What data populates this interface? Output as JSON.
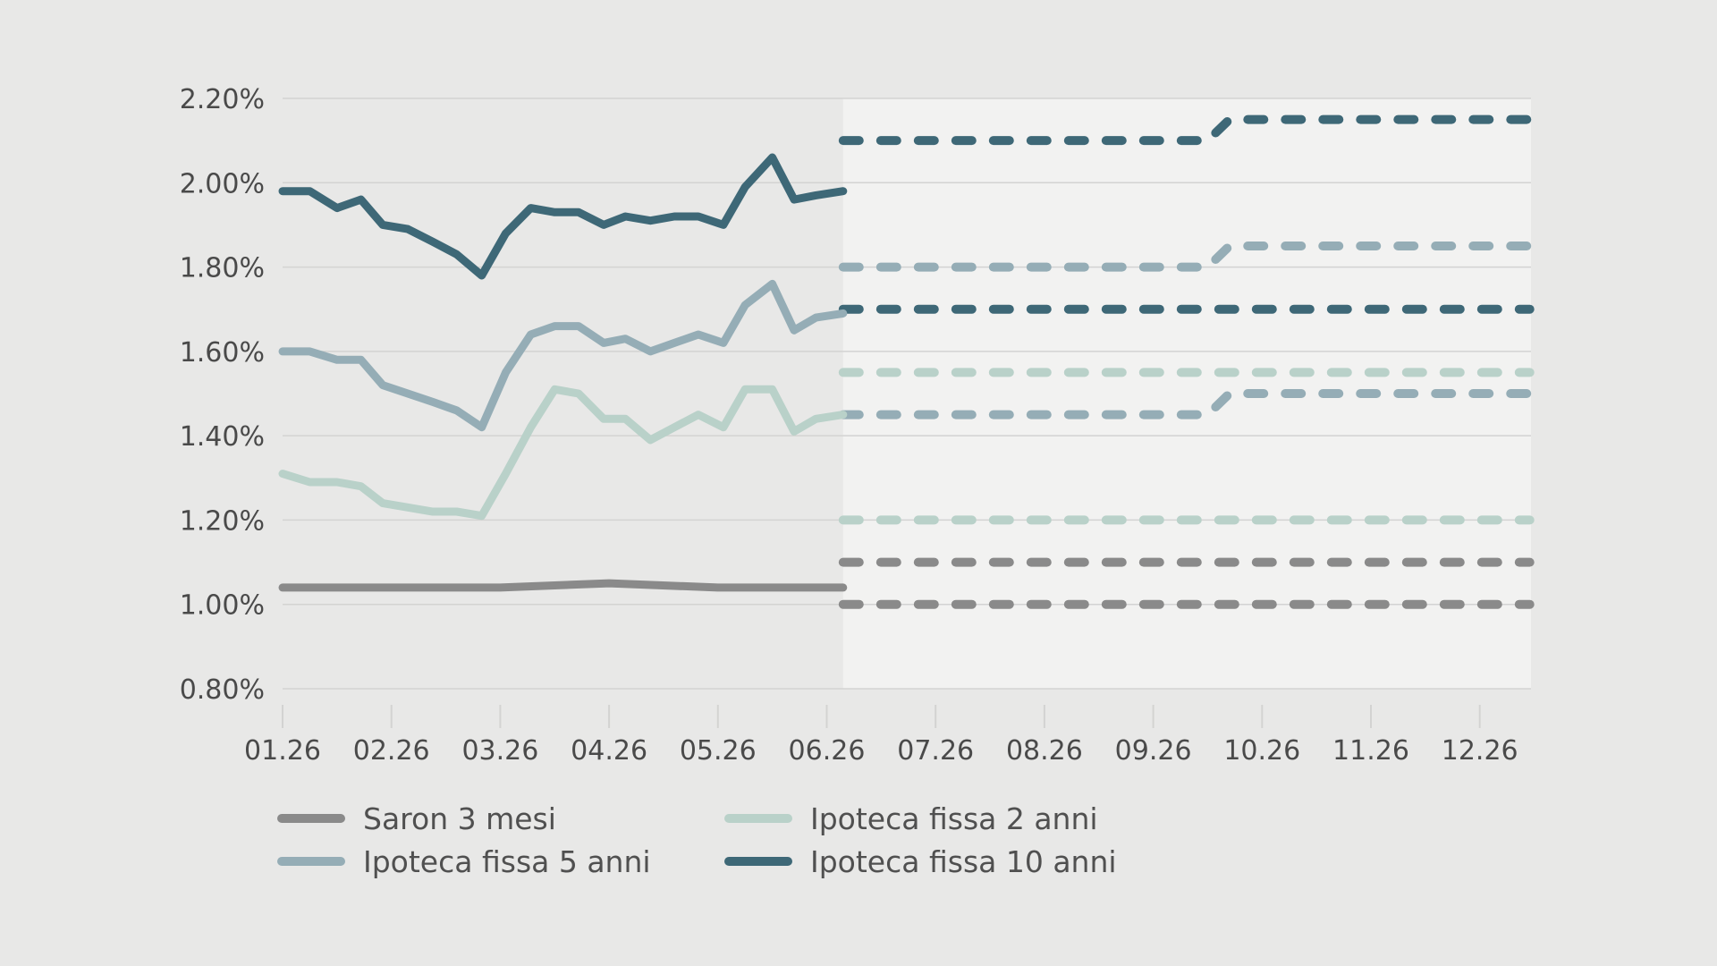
{
  "colors": {
    "background": "#e8e8e7",
    "forecast_area": "#f2f2f1",
    "grid": "#d3d3d2",
    "axis_text": "#4a4a4a",
    "saron": "#8a8a8a",
    "ipoteca_2": "#b9d1c9",
    "ipoteca_5": "#95adb6",
    "ipoteca_10": "#3e6877"
  },
  "chart_data": {
    "type": "line",
    "title": "",
    "xlabel": "",
    "ylabel": "",
    "x_ticks": [
      "01.26",
      "02.26",
      "03.26",
      "04.26",
      "05.26",
      "06.26",
      "07.26",
      "08.26",
      "09.26",
      "10.26",
      "11.26",
      "12.26"
    ],
    "y_ticks": [
      "0.80%",
      "1.00%",
      "1.20%",
      "1.40%",
      "1.60%",
      "1.80%",
      "2.00%",
      "2.20%"
    ],
    "ylim": [
      0.8,
      2.2
    ],
    "xlim": [
      0,
      11.46
    ],
    "grid": true,
    "forecast_start": 5.15,
    "legend_position": "bottom",
    "series": [
      {
        "name": "Saron 3 mesi",
        "color_key": "saron",
        "x": [
          0,
          1,
          2,
          3,
          4,
          5,
          5.15
        ],
        "y": [
          1.04,
          1.04,
          1.04,
          1.05,
          1.04,
          1.04,
          1.04
        ]
      },
      {
        "name": "Ipoteca fissa 2 anni",
        "color_key": "ipoteca_2",
        "x": [
          0,
          0.25,
          0.5,
          0.72,
          0.92,
          1.15,
          1.38,
          1.6,
          1.83,
          2.05,
          2.28,
          2.5,
          2.72,
          2.95,
          3.15,
          3.38,
          3.6,
          3.82,
          4.05,
          4.25,
          4.5,
          4.7,
          4.9,
          5.15
        ],
        "y": [
          1.31,
          1.29,
          1.29,
          1.28,
          1.24,
          1.23,
          1.22,
          1.22,
          1.21,
          1.31,
          1.42,
          1.51,
          1.5,
          1.44,
          1.44,
          1.39,
          1.42,
          1.45,
          1.42,
          1.51,
          1.51,
          1.41,
          1.44,
          1.45
        ]
      },
      {
        "name": "Ipoteca fissa 5 anni",
        "color_key": "ipoteca_5",
        "x": [
          0,
          0.25,
          0.5,
          0.72,
          0.92,
          1.15,
          1.38,
          1.6,
          1.83,
          2.05,
          2.28,
          2.5,
          2.72,
          2.95,
          3.15,
          3.38,
          3.6,
          3.82,
          4.05,
          4.25,
          4.5,
          4.7,
          4.9,
          5.15
        ],
        "y": [
          1.6,
          1.6,
          1.58,
          1.58,
          1.52,
          1.5,
          1.48,
          1.46,
          1.42,
          1.55,
          1.64,
          1.66,
          1.66,
          1.62,
          1.63,
          1.6,
          1.62,
          1.64,
          1.62,
          1.71,
          1.76,
          1.65,
          1.68,
          1.69
        ]
      },
      {
        "name": "Ipoteca fissa 10 anni",
        "color_key": "ipoteca_10",
        "x": [
          0,
          0.25,
          0.5,
          0.72,
          0.92,
          1.15,
          1.38,
          1.6,
          1.83,
          2.05,
          2.28,
          2.5,
          2.72,
          2.95,
          3.15,
          3.38,
          3.6,
          3.82,
          4.05,
          4.25,
          4.5,
          4.7,
          4.9,
          5.15
        ],
        "y": [
          1.98,
          1.98,
          1.94,
          1.96,
          1.9,
          1.89,
          1.86,
          1.83,
          1.78,
          1.88,
          1.94,
          1.93,
          1.93,
          1.9,
          1.92,
          1.91,
          1.92,
          1.92,
          1.9,
          1.99,
          2.06,
          1.96,
          1.97,
          1.98
        ]
      }
    ],
    "forecasts": [
      {
        "color_key": "ipoteca_10",
        "x": [
          5.15,
          8.5,
          8.7,
          11.46
        ],
        "y": [
          2.1,
          2.1,
          2.15,
          2.15
        ]
      },
      {
        "color_key": "ipoteca_5",
        "x": [
          5.15,
          8.5,
          8.7,
          11.46
        ],
        "y": [
          1.8,
          1.8,
          1.85,
          1.85
        ]
      },
      {
        "color_key": "ipoteca_10",
        "x": [
          5.15,
          11.46
        ],
        "y": [
          1.7,
          1.7
        ]
      },
      {
        "color_key": "ipoteca_2",
        "x": [
          5.15,
          11.46
        ],
        "y": [
          1.55,
          1.55
        ]
      },
      {
        "color_key": "ipoteca_5",
        "x": [
          5.15,
          8.5,
          8.7,
          11.46
        ],
        "y": [
          1.45,
          1.45,
          1.5,
          1.5
        ]
      },
      {
        "color_key": "ipoteca_2",
        "x": [
          5.15,
          11.46
        ],
        "y": [
          1.2,
          1.2
        ]
      },
      {
        "color_key": "saron",
        "x": [
          5.15,
          11.46
        ],
        "y": [
          1.1,
          1.1
        ]
      },
      {
        "color_key": "saron",
        "x": [
          5.15,
          11.46
        ],
        "y": [
          1.0,
          1.0
        ]
      }
    ]
  },
  "legend": {
    "items": [
      {
        "label": "Saron 3 mesi",
        "color_key": "saron"
      },
      {
        "label": "Ipoteca fissa 2 anni",
        "color_key": "ipoteca_2"
      },
      {
        "label": "Ipoteca fissa 5 anni",
        "color_key": "ipoteca_5"
      },
      {
        "label": "Ipoteca fissa 10 anni",
        "color_key": "ipoteca_10"
      }
    ]
  }
}
